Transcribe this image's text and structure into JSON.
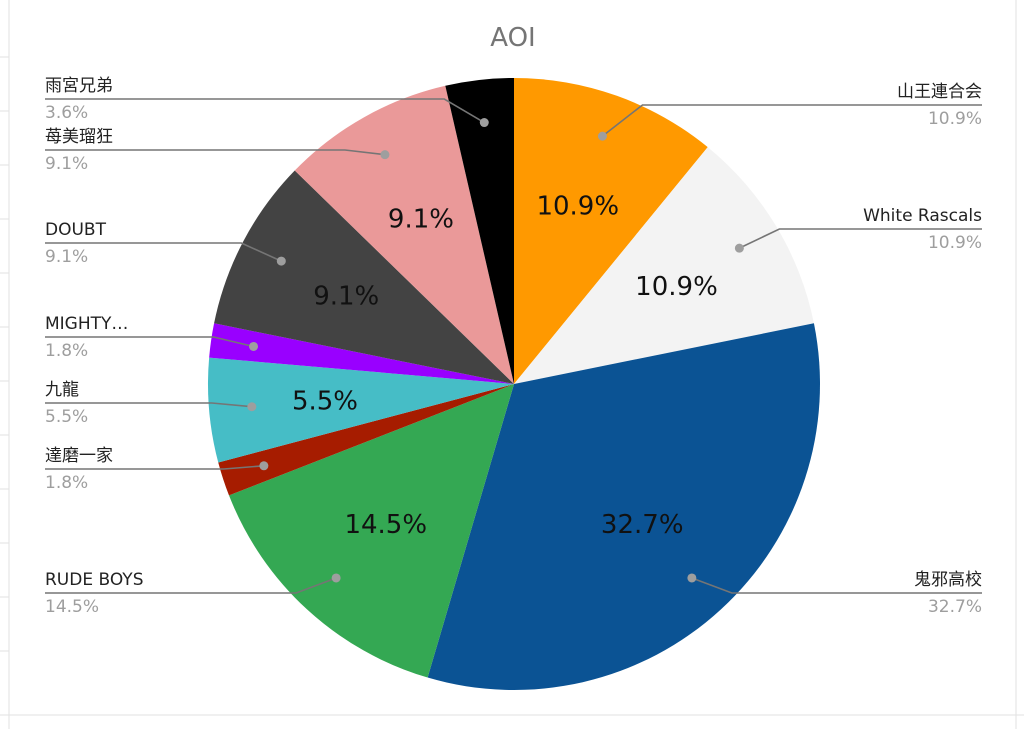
{
  "chart_data": {
    "type": "pie",
    "title": "AOI",
    "slices": [
      {
        "label": "山王連合会",
        "value": 10.9,
        "pct_text": "10.9%",
        "color": "#ff9900"
      },
      {
        "label": "White Rascals",
        "value": 10.9,
        "pct_text": "10.9%",
        "color": "#f3f3f3"
      },
      {
        "label": "鬼邪高校",
        "value": 32.7,
        "pct_text": "32.7%",
        "color": "#0b5394"
      },
      {
        "label": "RUDE BOYS",
        "value": 14.5,
        "pct_text": "14.5%",
        "color": "#34a853"
      },
      {
        "label": "達磨一家",
        "value": 1.8,
        "pct_text": "1.8%",
        "color": "#a61c00"
      },
      {
        "label": "九龍",
        "value": 5.5,
        "pct_text": "5.5%",
        "color": "#46bdc6"
      },
      {
        "label": "MIGHTY…",
        "value": 1.8,
        "pct_text": "1.8%",
        "color": "#9900ff"
      },
      {
        "label": "DOUBT",
        "value": 9.1,
        "pct_text": "9.1%",
        "color": "#434343"
      },
      {
        "label": "苺美瑠狂",
        "value": 9.1,
        "pct_text": "9.1%",
        "color": "#ea9999"
      },
      {
        "label": "雨宮兄弟",
        "value": 3.6,
        "pct_text": "3.6%",
        "color": "#000000"
      }
    ],
    "inside_labels": [
      "10.9%",
      "10.9%",
      "32.7%",
      "14.5%",
      "",
      "5.5%",
      "",
      "9.1%",
      "9.1%",
      ""
    ],
    "legend_placement": "outside labels with leader lines",
    "grid": false
  }
}
